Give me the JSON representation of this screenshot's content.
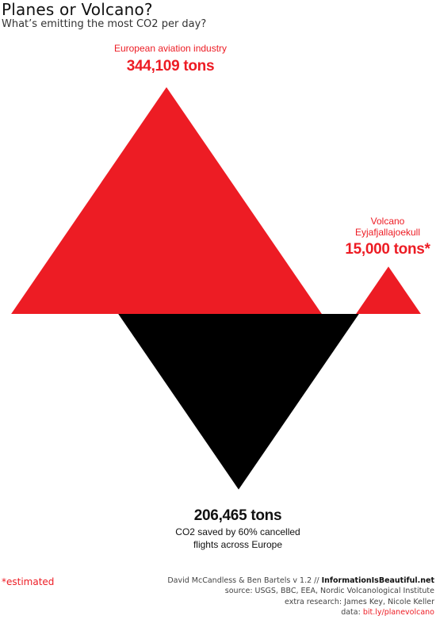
{
  "header": {
    "title": "Planes or Volcano?",
    "subtitle": "What’s emitting the most CO2 per day?"
  },
  "colors": {
    "accent": "#ed1c24",
    "saved": "#000000"
  },
  "chart_data": {
    "type": "area",
    "title": "Planes or Volcano?",
    "subtitle": "What’s emitting the most CO2 per day?",
    "unit": "tons",
    "series": [
      {
        "name": "European aviation industry",
        "value": 344109,
        "value_label": "344,109 tons",
        "color": "#ed1c24"
      },
      {
        "name": "Volcano Eyjafjallajoekull",
        "value": 15000,
        "value_label": "15,000 tons*",
        "color": "#ed1c24"
      },
      {
        "name": "CO2 saved by 60% cancelled flights across Europe",
        "value": 206465,
        "value_label": "206,465 tons",
        "color": "#000000"
      }
    ]
  },
  "labels": {
    "aviation_name": "European aviation industry",
    "aviation_value": "344,109 tons",
    "volcano_line1": "Volcano",
    "volcano_line2": "Eyjafjallajoekull",
    "volcano_value": "15,000 tons*",
    "saved_value": "206,465 tons",
    "saved_line1": "CO2 saved by 60% cancelled",
    "saved_line2": "flights across Europe"
  },
  "footer": {
    "note": "*estimated",
    "authors": "David McCandless & Ben Bartels   v 1.2 // ",
    "site": "InformationIsBeautiful.net",
    "source": "source: USGS, BBC, EEA, Nordic Volcanological Institute",
    "research": "extra research: James Key, Nicole Keller",
    "data_prefix": "data: ",
    "data_link": "bit.ly/planevolcano"
  }
}
